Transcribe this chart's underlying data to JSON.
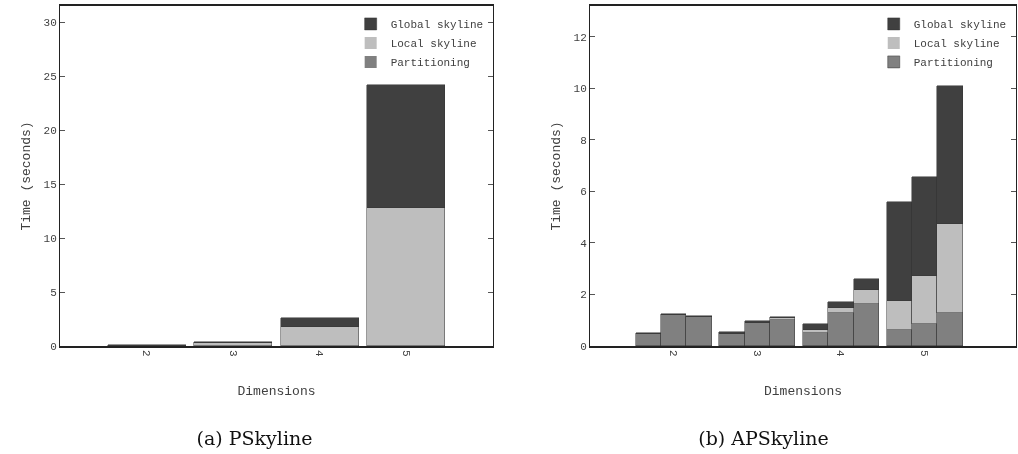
{
  "chart_data": [
    {
      "type": "bar",
      "title": "(a) PSkyline",
      "xlabel": "Dimensions",
      "ylabel": "Time (seconds)",
      "categories": [
        "2",
        "3",
        "4",
        "5"
      ],
      "stacked": true,
      "legend": "top right",
      "grid": false,
      "ylim": [
        0,
        31.5
      ],
      "yticks": [
        0,
        5,
        10,
        15,
        20,
        25,
        30
      ],
      "series": [
        {
          "name": "Partitioning",
          "color": "#808080",
          "values": [
            0,
            0,
            0,
            0
          ]
        },
        {
          "name": "Local skyline",
          "color": "#bebebe",
          "values": [
            0,
            0.3,
            1.8,
            12.8
          ]
        },
        {
          "name": "Global skyline",
          "color": "#404040",
          "values": [
            0.1,
            0.1,
            0.8,
            11.4
          ]
        }
      ]
    },
    {
      "type": "bar",
      "title": "(b) APSkyline",
      "xlabel": "Dimensions",
      "ylabel": "Time (seconds)",
      "categories": [
        null,
        "2",
        null,
        null,
        "3",
        null,
        null,
        "4",
        null,
        null,
        "5",
        null
      ],
      "stacked": true,
      "legend": "top right",
      "grid": false,
      "ylim": [
        0,
        13.2
      ],
      "yticks": [
        0,
        2,
        4,
        6,
        8,
        10,
        12
      ],
      "series": [
        {
          "name": "Partitioning",
          "color": "#808080",
          "values": [
            0.45,
            1.2,
            1.12,
            0.48,
            0.9,
            1.0,
            0.52,
            1.27,
            1.63,
            0.61,
            0.86,
            1.3
          ]
        },
        {
          "name": "Local skyline",
          "color": "#bebebe",
          "values": [
            0,
            0,
            0,
            0,
            0,
            0.07,
            0.12,
            0.22,
            0.56,
            1.12,
            1.86,
            3.45
          ]
        },
        {
          "name": "Global skyline",
          "color": "#404040",
          "values": [
            0.06,
            0.06,
            0.06,
            0.06,
            0.06,
            0.06,
            0.22,
            0.21,
            0.42,
            3.85,
            3.84,
            5.34
          ]
        }
      ]
    }
  ]
}
